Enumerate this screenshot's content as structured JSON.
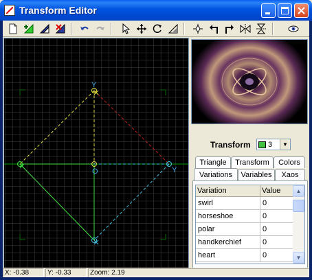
{
  "window": {
    "title": "Transform Editor"
  },
  "toolbar": {
    "buttons": [
      {
        "icon": "new-icon"
      },
      {
        "icon": "add-triangle-icon"
      },
      {
        "icon": "duplicate-triangle-icon"
      },
      {
        "icon": "delete-triangle-icon"
      },
      {
        "icon": "undo-icon"
      },
      {
        "icon": "redo-icon"
      },
      {
        "icon": "select-arrow-icon"
      },
      {
        "icon": "move-icon"
      },
      {
        "icon": "rotate-icon"
      },
      {
        "icon": "scale-icon"
      },
      {
        "icon": "reset-icon"
      },
      {
        "icon": "rotate-left-icon"
      },
      {
        "icon": "rotate-right-icon"
      },
      {
        "icon": "flip-horizontal-icon"
      },
      {
        "icon": "flip-vertical-icon"
      },
      {
        "icon": "view-eye-icon"
      }
    ]
  },
  "canvas": {
    "labels": {
      "origin": "O",
      "x": "X",
      "y": "Y"
    },
    "colors": {
      "background": "#000000",
      "grid": "#3a3a3a",
      "axes": "#00b000",
      "main_triangle": "#40e040",
      "yellow": "#e0e040",
      "cyan": "#40c0e0",
      "red": "#c02020"
    }
  },
  "panel": {
    "transform_label": "Transform",
    "transform_value": "3",
    "tabs_row1": [
      "Triangle",
      "Transform",
      "Colors"
    ],
    "tabs_row2": [
      "Variations",
      "Variables",
      "Xaos"
    ],
    "active_tab": "Variations",
    "grid": {
      "headers": [
        "Variation",
        "Value"
      ],
      "rows": [
        [
          "swirl",
          "0"
        ],
        [
          "horseshoe",
          "0"
        ],
        [
          "polar",
          "0"
        ],
        [
          "handkerchief",
          "0"
        ],
        [
          "heart",
          "0"
        ]
      ]
    }
  },
  "status": {
    "x": "X: -0.38",
    "y": "Y: -0.33",
    "zoom": "Zoom: 2.19"
  }
}
